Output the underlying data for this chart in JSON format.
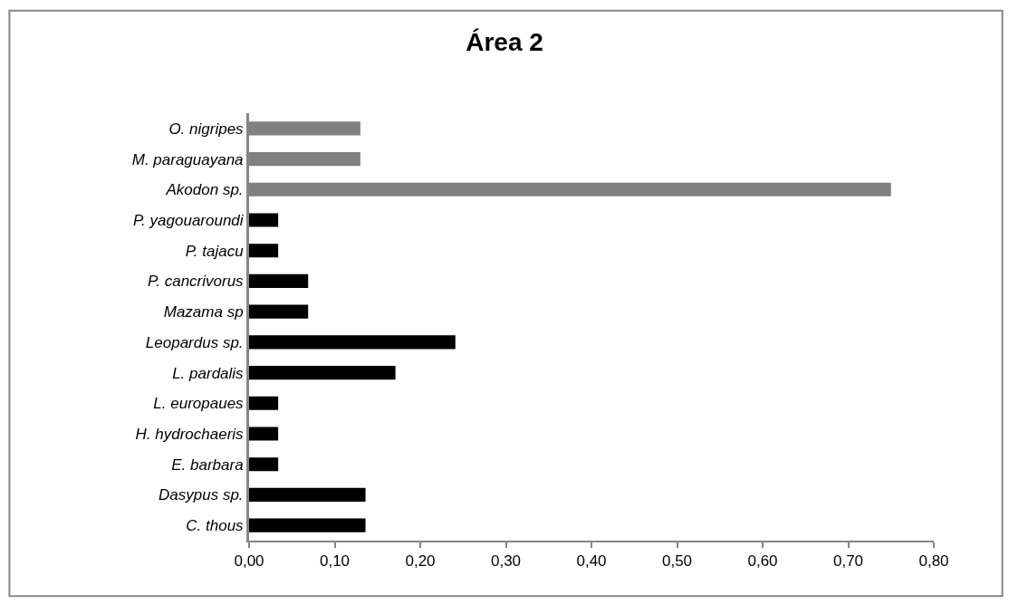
{
  "chart_data": {
    "type": "bar",
    "orientation": "horizontal",
    "title": "Área 2",
    "categories": [
      "O. nigripes",
      "M. paraguayana",
      "Akodon sp.",
      "P. yagouaroundi",
      "P. tajacu",
      "P. cancrivorus",
      "Mazama sp",
      "Leopardus sp.",
      "L. pardalis",
      "L. europaues",
      "H. hydrochaeris",
      "E. barbara",
      "Dasypus sp.",
      "C. thous"
    ],
    "values": [
      0.13,
      0.13,
      0.75,
      0.034,
      0.034,
      0.069,
      0.069,
      0.241,
      0.171,
      0.034,
      0.034,
      0.034,
      0.136,
      0.136
    ],
    "colors": [
      "#808080",
      "#808080",
      "#808080",
      "#000000",
      "#000000",
      "#000000",
      "#000000",
      "#000000",
      "#000000",
      "#000000",
      "#000000",
      "#000000",
      "#000000",
      "#000000"
    ],
    "xlim": [
      0,
      0.8
    ],
    "xticks": [
      {
        "value": 0,
        "label": "0,00"
      },
      {
        "value": 0.1,
        "label": "0,10"
      },
      {
        "value": 0.2,
        "label": "0,20"
      },
      {
        "value": 0.3,
        "label": "0,30"
      },
      {
        "value": 0.4,
        "label": "0,40"
      },
      {
        "value": 0.5,
        "label": "0,50"
      },
      {
        "value": 0.6,
        "label": "0,60"
      },
      {
        "value": 0.7,
        "label": "0,70"
      },
      {
        "value": 0.8,
        "label": "0,80"
      }
    ],
    "grid": false
  }
}
